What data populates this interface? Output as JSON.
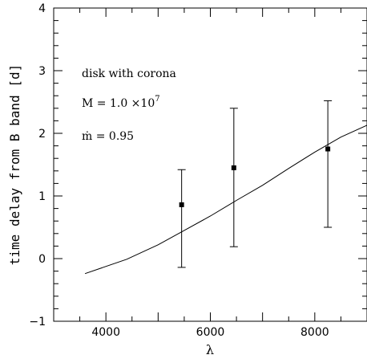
{
  "chart_data": {
    "type": "scatter",
    "xlabel": "λ",
    "ylabel": "time delay from B band [d]",
    "xlim": [
      3000,
      9000
    ],
    "ylim": [
      -1,
      4
    ],
    "x_ticks": [
      "4000",
      "6000",
      "8000"
    ],
    "y_ticks": [
      "−1",
      "0",
      "1",
      "2",
      "3",
      "4"
    ],
    "annotations": {
      "line1": "disk with corona",
      "mass_prefix": "M = 1.0 ×10",
      "mass_exp": "7",
      "mdot": "ṁ = 0.95"
    },
    "observations": [
      {
        "x": 5450,
        "y": 0.86,
        "yerr_low": 1.0,
        "yerr_high": 0.56
      },
      {
        "x": 6450,
        "y": 1.45,
        "yerr_low": 1.26,
        "yerr_high": 0.95
      },
      {
        "x": 8250,
        "y": 1.75,
        "yerr_low": 1.25,
        "yerr_high": 0.77
      }
    ],
    "model": {
      "x": [
        3600,
        4400,
        5000,
        5500,
        6000,
        6500,
        7000,
        7500,
        8000,
        8500,
        9000
      ],
      "y": [
        -0.24,
        -0.01,
        0.22,
        0.45,
        0.68,
        0.93,
        1.17,
        1.44,
        1.7,
        1.94,
        2.13
      ]
    },
    "grid": false
  }
}
